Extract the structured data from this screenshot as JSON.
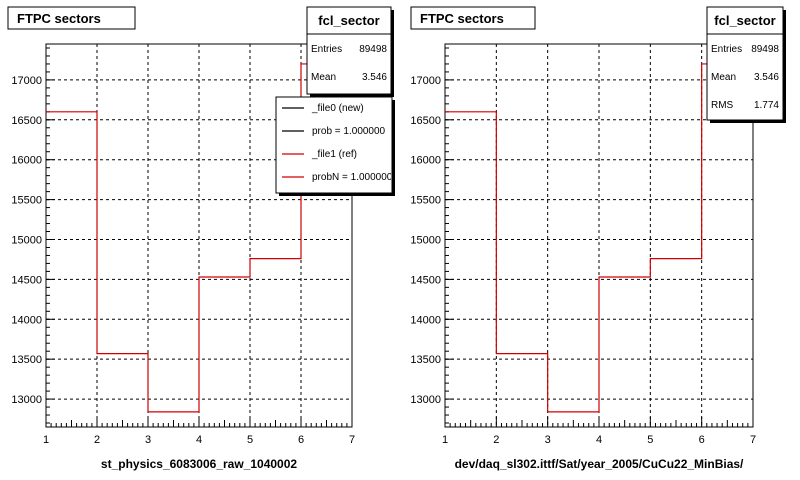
{
  "chart_data": [
    {
      "type": "line",
      "step": true,
      "title": "FTPC sectors",
      "xlabel": "st_physics_6083006_raw_1040002",
      "ylabel": "",
      "xlim": [
        1,
        7
      ],
      "ylim": [
        12650,
        17450
      ],
      "x_ticks": [
        1,
        2,
        3,
        4,
        5,
        6,
        7
      ],
      "y_ticks": [
        13000,
        13500,
        14000,
        14500,
        15000,
        15500,
        16000,
        16500,
        17000
      ],
      "grid": true,
      "bin_edges": [
        1,
        2,
        3,
        4,
        5,
        6,
        7
      ],
      "series": [
        {
          "color": "#d00000",
          "values": [
            16600,
            13570,
            12840,
            14530,
            14760,
            17200
          ]
        }
      ],
      "stats": {
        "title": "fcl_sector",
        "rows": [
          {
            "label": "Entries",
            "value": "89498"
          },
          {
            "label": "Mean",
            "value": "3.546"
          }
        ]
      },
      "legend": {
        "position": "top-right",
        "entries": [
          {
            "label": "_file0 (new)",
            "color": "#000000"
          },
          {
            "label": "prob = 1.000000",
            "color": "#000000"
          },
          {
            "label": "_file1 (ref)",
            "color": "#d00000"
          },
          {
            "label": "probN = 1.000000",
            "color": "#d00000"
          }
        ]
      }
    },
    {
      "type": "line",
      "step": true,
      "title": "FTPC sectors",
      "xlabel": "dev/daq_sl302.ittf/Sat/year_2005/CuCu22_MinBias/",
      "ylabel": "",
      "xlim": [
        1,
        7
      ],
      "ylim": [
        12650,
        17450
      ],
      "x_ticks": [
        1,
        2,
        3,
        4,
        5,
        6,
        7
      ],
      "y_ticks": [
        13000,
        13500,
        14000,
        14500,
        15000,
        15500,
        16000,
        16500,
        17000
      ],
      "grid": true,
      "bin_edges": [
        1,
        2,
        3,
        4,
        5,
        6,
        7
      ],
      "series": [
        {
          "color": "#d00000",
          "values": [
            16600,
            13570,
            12840,
            14530,
            14760,
            17200
          ]
        }
      ],
      "stats": {
        "title": "fcl_sector",
        "rows": [
          {
            "label": "Entries",
            "value": "89498"
          },
          {
            "label": "Mean",
            "value": "3.546"
          },
          {
            "label": "RMS",
            "value": "1.774"
          }
        ]
      }
    }
  ]
}
